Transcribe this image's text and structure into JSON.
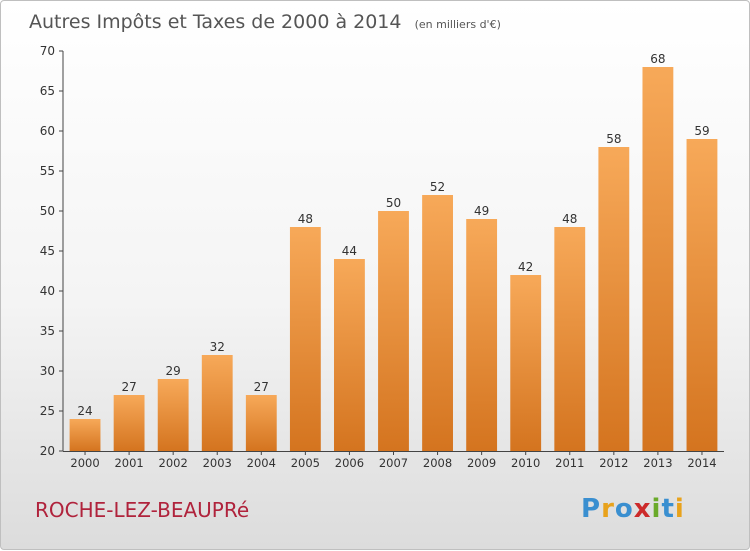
{
  "chart_data": {
    "type": "bar",
    "title": "Autres Impôts et Taxes de 2000 à 2014",
    "subtitle": "(en milliers d'€)",
    "categories": [
      "2000",
      "2001",
      "2002",
      "2003",
      "2004",
      "2005",
      "2006",
      "2007",
      "2008",
      "2009",
      "2010",
      "2011",
      "2012",
      "2013",
      "2014"
    ],
    "values": [
      24,
      27,
      29,
      32,
      27,
      48,
      44,
      50,
      52,
      49,
      42,
      48,
      58,
      68,
      59
    ],
    "ylim": [
      20,
      70
    ],
    "yticks": [
      20,
      25,
      30,
      35,
      40,
      45,
      50,
      55,
      60,
      65,
      70
    ],
    "grid": false,
    "bar_color_top": "#f7a959",
    "bar_color_bottom": "#d4741f"
  },
  "commune": "ROCHE-LEZ-BEAUPRé",
  "logo": {
    "text": "Proxiti",
    "letters": [
      {
        "ch": "P",
        "color": "#3a8fd0"
      },
      {
        "ch": "r",
        "color": "#e8a21c"
      },
      {
        "ch": "o",
        "color": "#3a8fd0"
      },
      {
        "ch": "x",
        "color": "#cc2a2a"
      },
      {
        "ch": "i",
        "color": "#6aaa2a"
      },
      {
        "ch": "t",
        "color": "#3a8fd0"
      },
      {
        "ch": "i",
        "color": "#e8a21c"
      }
    ]
  }
}
